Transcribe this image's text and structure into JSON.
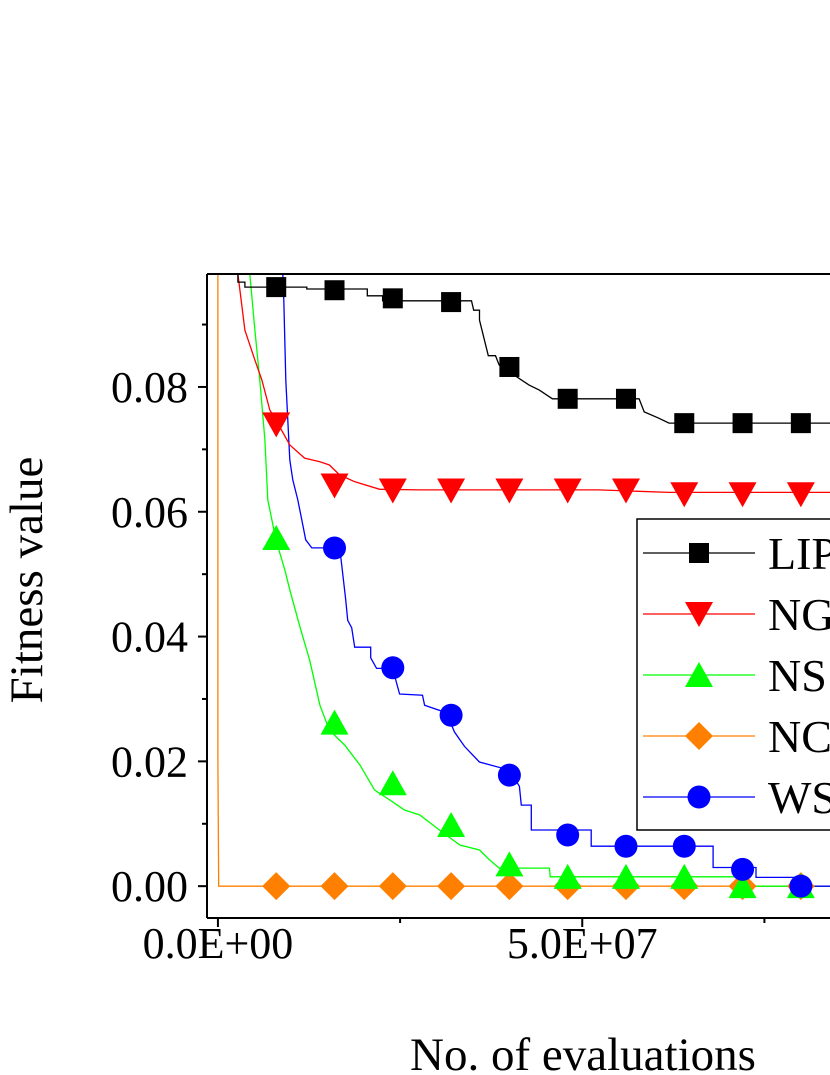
{
  "chart_data": {
    "type": "line",
    "title": "",
    "xlabel": "No. of evaluations",
    "ylabel": "Fitness value",
    "xlim": [
      -1500000.0,
      84000000.0
    ],
    "ylim": [
      -0.0051,
      0.0981
    ],
    "x_ticks": [
      {
        "value": 0,
        "label": "0.0E+00"
      },
      {
        "value": 50000000.0,
        "label": "5.0E+07"
      }
    ],
    "x_minor_ticks": [
      25000000.0,
      75000000.0
    ],
    "y_ticks": [
      {
        "value": 0.0,
        "label": "0.00"
      },
      {
        "value": 0.02,
        "label": "0.02"
      },
      {
        "value": 0.04,
        "label": "0.04"
      },
      {
        "value": 0.06,
        "label": "0.06"
      },
      {
        "value": 0.08,
        "label": "0.08"
      }
    ],
    "y_minor_ticks": [
      0.01,
      0.03,
      0.05,
      0.07,
      0.09
    ],
    "grid": false,
    "legend_placement": "right",
    "marker_x": [
      8000000.0,
      16000000.0,
      24000000.0,
      32000000.0,
      40000000.0,
      48000000.0,
      56000000.0,
      64000000.0,
      72000000.0,
      80000000.0
    ],
    "series": [
      {
        "name": "LIP",
        "color": "#000000",
        "marker": "square",
        "marker_y": [
          0.096,
          0.0955,
          0.0942,
          0.0936,
          0.0832,
          0.0781,
          0.0781,
          0.0742,
          0.0742,
          0.0742
        ],
        "x": [
          2740000.0,
          2740000.0,
          3700000.0,
          3700000.0,
          12200000.0,
          12200000.0,
          20500000.0,
          20500000.0,
          22600000.0,
          22600000.0,
          34800000.0,
          35100000.0,
          35900000.0,
          35900000.0,
          37100000.0,
          38100000.0,
          38600000.0,
          42700000.0,
          44100000.0,
          45900000.0,
          57800000.0,
          58500000.0,
          60500000.0,
          61900000.0,
          84000000.0
        ],
        "y": [
          0.0981,
          0.0968,
          0.0968,
          0.096,
          0.096,
          0.0957,
          0.0957,
          0.0946,
          0.0946,
          0.0938,
          0.0938,
          0.0923,
          0.0923,
          0.0907,
          0.085,
          0.085,
          0.0835,
          0.0803,
          0.0795,
          0.0781,
          0.0781,
          0.076,
          0.075,
          0.0742,
          0.0742
        ]
      },
      {
        "name": "NG",
        "color": "#ff0000",
        "marker": "triangle-down",
        "marker_y": [
          0.074,
          0.0642,
          0.0634,
          0.0634,
          0.0634,
          0.0634,
          0.0634,
          0.0628,
          0.0628,
          0.0628
        ],
        "x": [
          2740000.0,
          3700000.0,
          5070000.0,
          6030000.0,
          7120000.0,
          7950000.0,
          9860000.0,
          11900000.0,
          14000000.0,
          15300000.0,
          16700000.0,
          18800000.0,
          22200000.0,
          27700000.0,
          52300000.0,
          61900000.0,
          84000000.0
        ],
        "y": [
          0.0981,
          0.0891,
          0.0843,
          0.0811,
          0.0763,
          0.0747,
          0.0707,
          0.0686,
          0.068,
          0.0675,
          0.0659,
          0.0648,
          0.0636,
          0.0635,
          0.0635,
          0.0631,
          0.0631
        ]
      },
      {
        "name": "NS",
        "color": "#00ff00",
        "marker": "triangle-up",
        "marker_y": [
          0.0558,
          0.0262,
          0.0165,
          0.0098,
          0.0035,
          0.0015,
          0.0015,
          0.0015,
          0.0,
          0.0
        ],
        "x": [
          4380000.0,
          5070000.0,
          5750000.0,
          6440000.0,
          6850000.0,
          7400000.0,
          7950000.0,
          9180000.0,
          9860000.0,
          11200000.0,
          12600000.0,
          14000000.0,
          15300000.0,
          17400000.0,
          19500000.0,
          21500000.0,
          23600000.0,
          25600000.0,
          27700000.0,
          30400000.0,
          33200000.0,
          35900000.0,
          37300000.0,
          38600000.0,
          45500000.0,
          45600000.0,
          72200000.0,
          72200000.0,
          84000000.0
        ],
        "y": [
          0.0981,
          0.0891,
          0.0811,
          0.0715,
          0.0619,
          0.0587,
          0.0555,
          0.0507,
          0.0475,
          0.0418,
          0.0362,
          0.029,
          0.025,
          0.0226,
          0.0194,
          0.0154,
          0.0138,
          0.0122,
          0.0114,
          0.009,
          0.0066,
          0.0058,
          0.0042,
          0.0029,
          0.0029,
          0.0015,
          0.0015,
          0.0,
          0.0
        ]
      },
      {
        "name": "NC",
        "color": "#ff8000",
        "marker": "diamond",
        "marker_y": [
          0,
          0,
          0,
          0,
          0,
          0,
          0,
          0,
          0,
          0
        ],
        "x": [
          0,
          0,
          100000.0,
          84000000.0
        ],
        "y": [
          0.0981,
          0.02,
          0.0,
          0.0
        ]
      },
      {
        "name": "WS",
        "color": "#0000ff",
        "marker": "circle",
        "marker_y": [
          null,
          0.0542,
          0.035,
          0.0274,
          0.0178,
          0.0082,
          0.0064,
          0.0064,
          0.0027,
          0.0
        ],
        "x": [
          8900000.0,
          9040000.0,
          9320000.0,
          9590000.0,
          9860000.0,
          10270000.0,
          10960000.0,
          11510000.0,
          12050000.0,
          12880000.0,
          16710000.0,
          16990000.0,
          17530000.0,
          17810000.0,
          18360000.0,
          18770000.0,
          20960000.0,
          20960000.0,
          21780000.0,
          23970000.0,
          24930000.0,
          28080000.0,
          28360000.0,
          31100000.0,
          31780000.0,
          32470000.0,
          33840000.0,
          35890000.0,
          40000000.0,
          41370000.0,
          41640000.0,
          43010000.0,
          43010000.0,
          51230000.0,
          51230000.0,
          67950000.0,
          67950000.0,
          73840000.0,
          73840000.0,
          79730000.0,
          79730000.0,
          84000000.0
        ],
        "y": [
          0.0981,
          0.0939,
          0.0811,
          0.0747,
          0.0683,
          0.0651,
          0.0619,
          0.0587,
          0.0555,
          0.0542,
          0.0542,
          0.0515,
          0.0459,
          0.0426,
          0.0414,
          0.0383,
          0.0383,
          0.0366,
          0.0349,
          0.0349,
          0.0308,
          0.0306,
          0.029,
          0.0279,
          0.0266,
          0.0247,
          0.0224,
          0.0199,
          0.0186,
          0.016,
          0.013,
          0.013,
          0.009,
          0.009,
          0.0064,
          0.0064,
          0.003,
          0.003,
          0.0014,
          0.0014,
          0.0,
          0.0
        ]
      }
    ]
  }
}
